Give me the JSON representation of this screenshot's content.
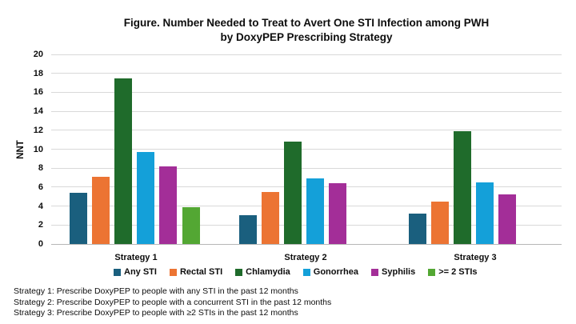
{
  "title": {
    "line1": "Figure. Number Needed to Treat to Avert One STI Infection among PWH",
    "line2": "by DoxyPEP Prescribing Strategy"
  },
  "chart_data": {
    "type": "bar",
    "title": "Figure. Number Needed to Treat to Avert One STI Infection among PWH by DoxyPEP Prescribing Strategy",
    "categories": [
      "Strategy 1",
      "Strategy 2",
      "Strategy 3"
    ],
    "series": [
      {
        "name": "Any STI",
        "color": "#1A5F7E",
        "values": [
          5.4,
          3.0,
          3.2
        ]
      },
      {
        "name": "Rectal STI",
        "color": "#EC7433",
        "values": [
          7.1,
          5.5,
          4.5
        ]
      },
      {
        "name": "Chlamydia",
        "color": "#1F6B2B",
        "values": [
          17.5,
          10.8,
          11.9
        ]
      },
      {
        "name": "Gonorrhea",
        "color": "#14A0D9",
        "values": [
          9.7,
          6.9,
          6.5
        ]
      },
      {
        "name": "Syphilis",
        "color": "#A32E98",
        "values": [
          8.2,
          6.4,
          5.2
        ]
      },
      {
        "name": ">= 2 STIs",
        "color": "#53A733",
        "values": [
          3.9,
          null,
          null
        ]
      }
    ],
    "xlabel": "",
    "ylabel": "NNT",
    "ylim": [
      0,
      20
    ],
    "ytick_step": 2,
    "grid": true,
    "legend_position": "bottom",
    "gridline_color": "#D9D9D9",
    "axis_line_color": "#B7B7B7"
  },
  "footnotes": [
    "Strategy 1: Prescribe DoxyPEP to people with any STI in the past 12 months",
    "Strategy 2: Prescribe DoxyPEP to people with a concurrent STI in the past 12 months",
    "Strategy 3: Prescribe DoxyPEP to people with ≥2 STIs in the past 12 months"
  ]
}
